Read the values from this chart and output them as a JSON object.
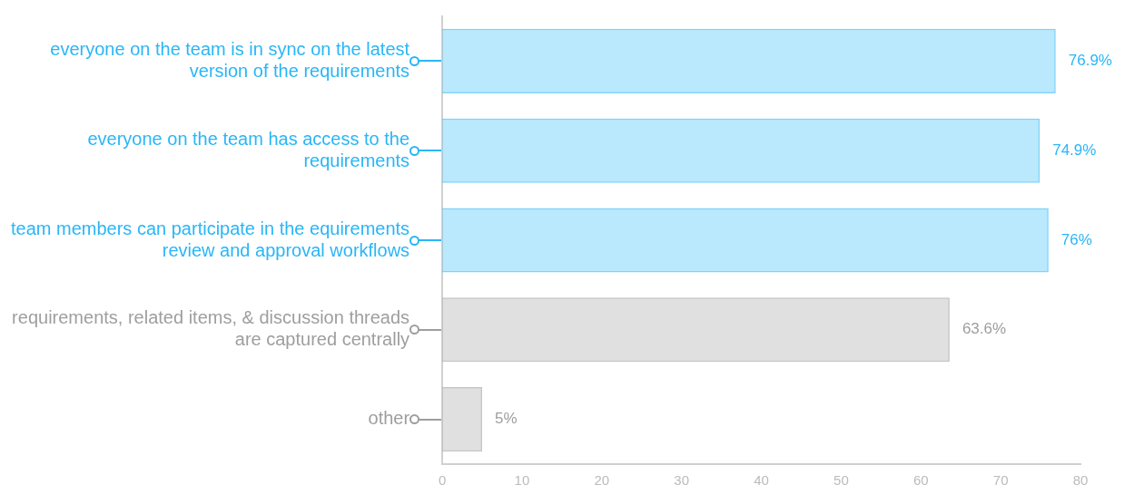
{
  "chart_data": {
    "type": "bar",
    "orientation": "horizontal",
    "categories": [
      "everyone on the team is in sync on the latest version of the requirements",
      "everyone on the team has access to the requirements",
      "team members can participate in the equirements review and approval workflows",
      "requirements, related items, & discussion threads are captured centrally",
      "other"
    ],
    "values": [
      76.9,
      74.9,
      76,
      63.6,
      5
    ],
    "colors": [
      "#29b6f6",
      "#29b6f6",
      "#29b6f6",
      "#9e9e9e",
      "#9e9e9e"
    ],
    "value_labels": [
      "76.9%",
      "74.9%",
      "76%",
      "63.6%",
      "5%"
    ],
    "xlim": [
      0,
      80
    ],
    "xticks": [
      0,
      10,
      20,
      30,
      40,
      50,
      60,
      70,
      80
    ],
    "grid": false,
    "legend": false
  }
}
